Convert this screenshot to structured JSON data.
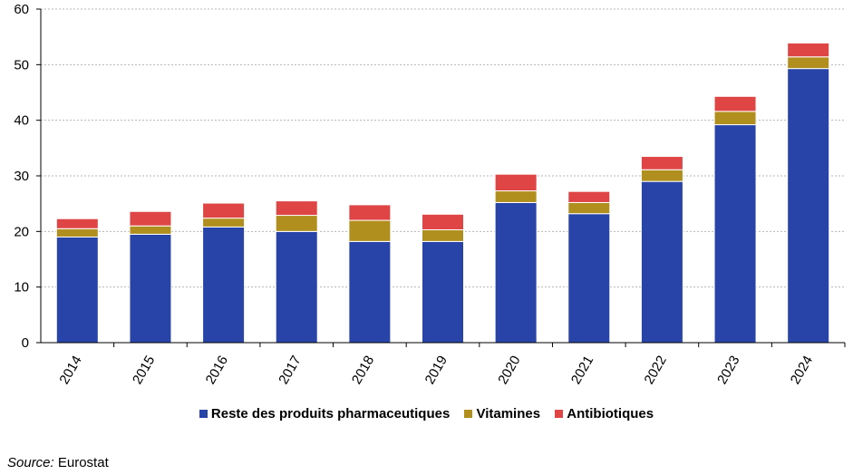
{
  "chart_data": {
    "type": "bar",
    "stacked": true,
    "categories": [
      "2014",
      "2015",
      "2016",
      "2017",
      "2018",
      "2019",
      "2020",
      "2021",
      "2022",
      "2023",
      "2024"
    ],
    "series": [
      {
        "name": "Reste des produits pharmaceutiques",
        "color": "#2844a8",
        "values": [
          19.0,
          19.5,
          20.8,
          20.0,
          18.2,
          18.2,
          25.2,
          23.2,
          29.0,
          39.2,
          49.3
        ]
      },
      {
        "name": "Vitamines",
        "color": "#b08f1e",
        "values": [
          1.5,
          1.5,
          1.6,
          2.9,
          3.8,
          2.1,
          2.1,
          2.0,
          2.1,
          2.4,
          2.1
        ]
      },
      {
        "name": "Antibiotiques",
        "color": "#e04545",
        "values": [
          1.8,
          2.6,
          2.7,
          2.6,
          2.8,
          2.8,
          3.0,
          2.0,
          2.4,
          2.7,
          2.5
        ]
      }
    ],
    "yticks": [
      0,
      10,
      20,
      30,
      40,
      50,
      60
    ],
    "ylim": [
      0,
      60
    ],
    "grid": true,
    "legend_position": "bottom"
  },
  "source": {
    "label": "Source:",
    "text": "Eurostat"
  }
}
